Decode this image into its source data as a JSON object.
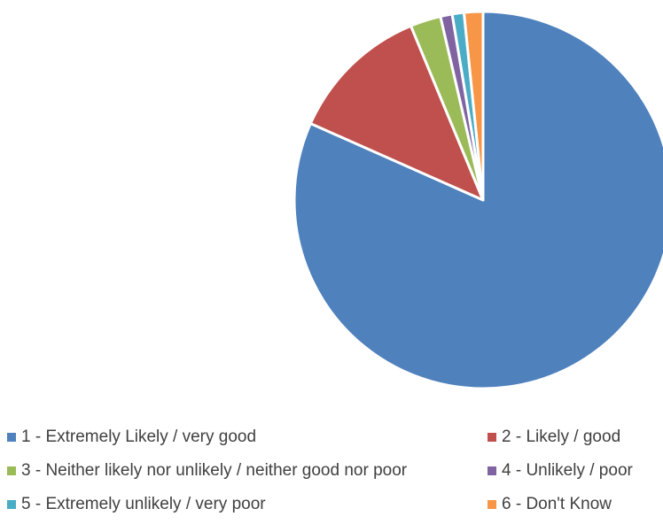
{
  "chart_data": {
    "type": "pie",
    "title": "",
    "start_angle_deg": 0,
    "direction": "clockwise",
    "slices": [
      {
        "label": "1 - Extremely Likely / very good",
        "value": 81.0,
        "color": "#4F81BD"
      },
      {
        "label": "2 - Likely / good",
        "value": 12.0,
        "color": "#C0504D"
      },
      {
        "label": "3 - Neither likely nor unlikely / neither good nor poor",
        "value": 2.6,
        "color": "#9BBB59"
      },
      {
        "label": "4 - Unlikely / poor",
        "value": 1.0,
        "color": "#8064A2"
      },
      {
        "label": "5 - Extremely unlikely / very poor",
        "value": 1.0,
        "color": "#4BACC6"
      },
      {
        "label": "6 - Don't Know",
        "value": 1.6,
        "color": "#F79646"
      }
    ],
    "legend": {
      "position": "bottom",
      "columns": 2
    }
  }
}
